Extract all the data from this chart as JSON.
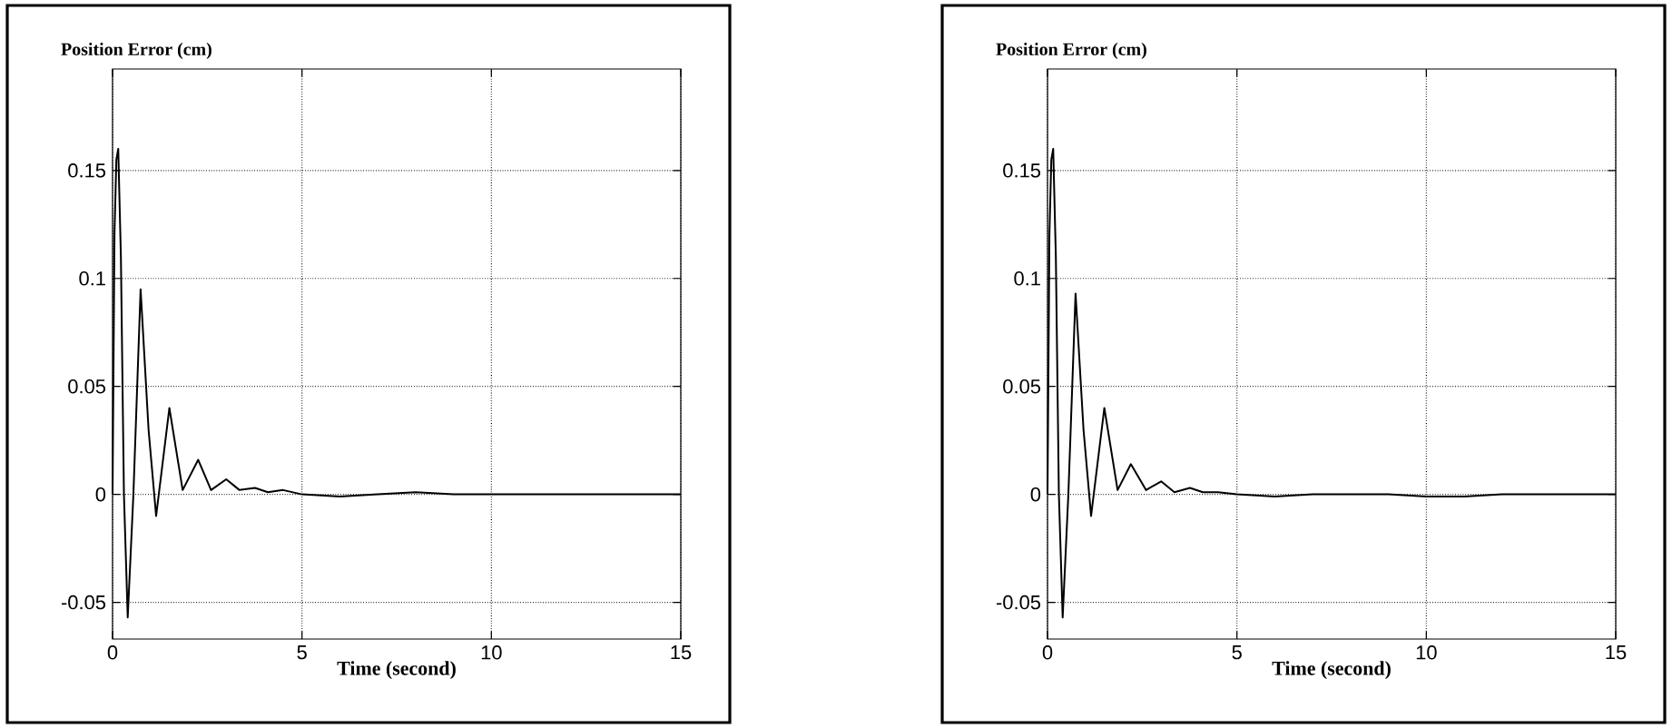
{
  "chart_data": [
    {
      "type": "line",
      "title": "Position Error (cm)",
      "xlabel": "Time (second)",
      "xlim": [
        0,
        15
      ],
      "ylim": [
        -0.067,
        0.197
      ],
      "xticks": [
        0,
        5,
        10,
        15
      ],
      "yticks": [
        -0.05,
        0,
        0.05,
        0.1,
        0.15
      ],
      "grid": true,
      "line_style": "solid",
      "series": [
        {
          "color": "#000000",
          "x": [
            0,
            0.05,
            0.1,
            0.15,
            0.22,
            0.3,
            0.4,
            0.55,
            0.74,
            0.95,
            1.15,
            1.5,
            1.85,
            2.26,
            2.6,
            3.0,
            3.35,
            3.76,
            4.1,
            4.5,
            5,
            6,
            7,
            8,
            9,
            10,
            12,
            15
          ],
          "values": [
            0,
            0.12,
            0.155,
            0.16,
            0.11,
            0.0,
            -0.057,
            0.0,
            0.095,
            0.03,
            -0.01,
            0.04,
            0.002,
            0.016,
            0.002,
            0.007,
            0.002,
            0.003,
            0.001,
            0.002,
            0,
            -0.001,
            0,
            0.001,
            0,
            0,
            0,
            0
          ]
        }
      ]
    },
    {
      "type": "line",
      "title": "Position Error (cm)",
      "xlabel": "Time (second)",
      "xlim": [
        0,
        15
      ],
      "ylim": [
        -0.067,
        0.197
      ],
      "xticks": [
        0,
        5,
        10,
        15
      ],
      "yticks": [
        -0.05,
        0,
        0.05,
        0.1,
        0.15
      ],
      "grid": true,
      "line_style": "solid",
      "series": [
        {
          "color": "#000000",
          "x": [
            0,
            0.05,
            0.1,
            0.15,
            0.22,
            0.3,
            0.4,
            0.55,
            0.74,
            0.95,
            1.15,
            1.5,
            1.85,
            2.2,
            2.6,
            3.0,
            3.35,
            3.76,
            4.1,
            4.5,
            5,
            6,
            7,
            8,
            9,
            10,
            11,
            12,
            15
          ],
          "values": [
            0,
            0.12,
            0.155,
            0.16,
            0.11,
            0.0,
            -0.057,
            0.0,
            0.093,
            0.03,
            -0.01,
            0.04,
            0.002,
            0.014,
            0.002,
            0.006,
            0.001,
            0.003,
            0.001,
            0.001,
            0,
            -0.001,
            0,
            0,
            0,
            -0.001,
            -0.001,
            0,
            0
          ]
        }
      ]
    }
  ]
}
